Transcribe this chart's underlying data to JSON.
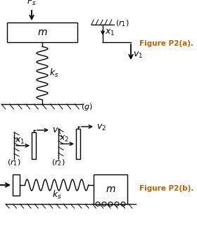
{
  "fig_width": 2.8,
  "fig_height": 3.44,
  "dpi": 100,
  "bg_color": "#ffffff",
  "label_color_orange": "#b8620a",
  "fig_a_label": "Figure P2(a).",
  "fig_b_label": "Figure P2(b)."
}
